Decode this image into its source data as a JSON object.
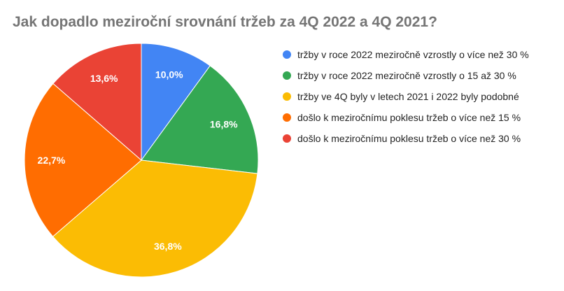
{
  "chart_data": {
    "type": "pie",
    "title": "Jak dopadlo meziroční srovnání tržeb za 4Q 2022 a 4Q 2021?",
    "legend_position": "right",
    "slices": [
      {
        "label": "tržby v roce 2022 meziročně vzrostly o více než 30 %",
        "value": 10.0,
        "display": "10,0%",
        "color": "#4285f4"
      },
      {
        "label": "tržby v roce 2022 meziročně vzrostly o 15 až 30 %",
        "value": 16.8,
        "display": "16,8%",
        "color": "#34a853"
      },
      {
        "label": "tržby ve 4Q byly v letech 2021 i 2022 byly podobné",
        "value": 36.8,
        "display": "36,8%",
        "color": "#fbbc04"
      },
      {
        "label": "došlo k meziročnímu poklesu tržeb o více než 15 %",
        "value": 22.7,
        "display": "22,7%",
        "color": "#ff6d01"
      },
      {
        "label": "došlo k meziročnímu poklesu tržeb o více než 30 %",
        "value": 13.6,
        "display": "13,6%",
        "color": "#ea4335"
      }
    ]
  }
}
